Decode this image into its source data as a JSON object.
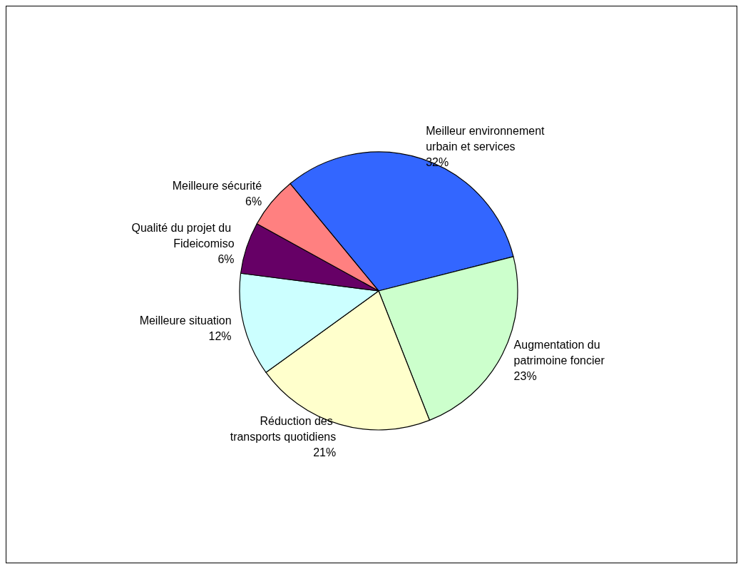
{
  "chart_data": {
    "type": "pie",
    "categories": [
      "Meilleur environnement urbain et services",
      "Augmentation du patrimoine foncier",
      "Réduction des transports quotidiens",
      "Meilleure situation",
      "Qualité du projet du Fideicomiso",
      "Meilleure sécurité"
    ],
    "values": [
      32,
      23,
      21,
      12,
      6,
      6
    ],
    "value_labels": [
      "32%",
      "23%",
      "21%",
      "12%",
      "6%",
      "6%"
    ],
    "colors": [
      "#3366ff",
      "#ccffcc",
      "#ffffcc",
      "#ccffff",
      "#660066",
      "#ff8080"
    ],
    "legend": false
  }
}
